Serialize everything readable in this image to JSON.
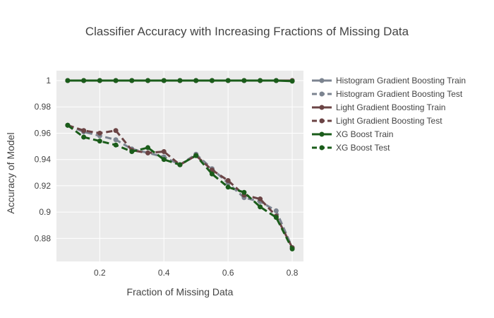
{
  "chart_data": {
    "type": "line",
    "title": "Classifier Accuracy with Increasing Fractions of Missing Data",
    "xlabel": "Fraction of Missing Data",
    "ylabel": "Accuracy of Model",
    "xlim": [
      0.065,
      0.835
    ],
    "ylim": [
      0.8625,
      1.0075
    ],
    "x_ticks": [
      0.2,
      0.4,
      0.6,
      0.8
    ],
    "x_tick_labels": [
      "0.2",
      "0.4",
      "0.6",
      "0.8"
    ],
    "y_ticks": [
      0.88,
      0.9,
      0.92,
      0.94,
      0.96,
      0.98,
      1.0
    ],
    "y_tick_labels": [
      "0.88",
      "0.9",
      "0.92",
      "0.94",
      "0.96",
      "0.98",
      "1"
    ],
    "grid": true,
    "legend_position": "right",
    "x": [
      0.1,
      0.15,
      0.2,
      0.25,
      0.3,
      0.35,
      0.4,
      0.45,
      0.5,
      0.55,
      0.6,
      0.65,
      0.7,
      0.75,
      0.8
    ],
    "series": [
      {
        "name": "Histogram Gradient Boosting Train",
        "color": "#7c8490",
        "dash": "solid",
        "values": [
          1.0,
          1.0,
          1.0,
          1.0,
          1.0,
          1.0,
          1.0,
          1.0,
          1.0,
          1.0,
          1.0,
          1.0,
          1.0,
          1.0,
          1.0
        ]
      },
      {
        "name": "Histogram Gradient Boosting Test",
        "color": "#7c8490",
        "dash": "dash",
        "values": [
          0.966,
          0.961,
          0.958,
          0.955,
          0.948,
          0.945,
          0.942,
          0.936,
          0.944,
          0.933,
          0.922,
          0.911,
          0.908,
          0.901,
          0.873
        ]
      },
      {
        "name": "Light Gradient Boosting Train",
        "color": "#6b4445",
        "dash": "solid",
        "values": [
          1.0,
          1.0,
          1.0,
          1.0,
          1.0,
          1.0,
          1.0,
          1.0,
          1.0,
          1.0,
          1.0,
          1.0,
          1.0,
          1.0,
          1.0
        ]
      },
      {
        "name": "Light Gradient Boosting Test",
        "color": "#6b4445",
        "dash": "dash",
        "values": [
          0.966,
          0.962,
          0.96,
          0.962,
          0.947,
          0.945,
          0.946,
          0.936,
          0.943,
          0.932,
          0.924,
          0.913,
          0.91,
          0.897,
          0.873
        ]
      },
      {
        "name": "XG Boost Train",
        "color": "#1a5c1a",
        "dash": "solid",
        "values": [
          1.0,
          1.0,
          1.0,
          1.0,
          1.0,
          1.0,
          1.0,
          1.0,
          1.0,
          1.0,
          1.0,
          1.0,
          1.0,
          1.0,
          0.9995
        ]
      },
      {
        "name": "XG Boost Test",
        "color": "#1a5c1a",
        "dash": "dash",
        "values": [
          0.966,
          0.957,
          0.954,
          0.951,
          0.946,
          0.949,
          0.94,
          0.936,
          0.943,
          0.929,
          0.919,
          0.915,
          0.904,
          0.896,
          0.872
        ]
      }
    ]
  }
}
